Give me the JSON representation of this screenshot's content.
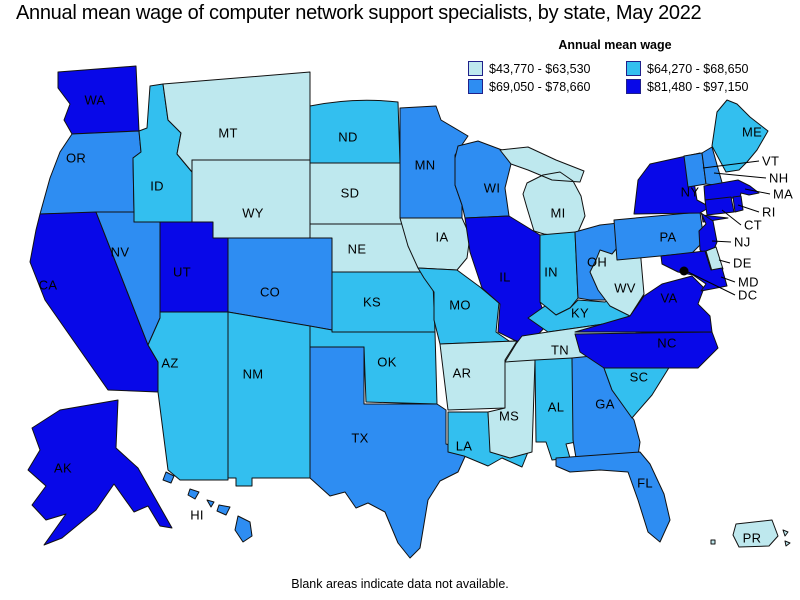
{
  "title": "Annual mean wage of computer network support specialists, by state, May 2022",
  "legend": {
    "title": "Annual mean wage",
    "categories": [
      {
        "label": "$43,770 - $63,530",
        "color": "#bee8ee"
      },
      {
        "label": "$64,270 - $68,650",
        "color": "#33bfef"
      },
      {
        "label": "$69,050 - $78,660",
        "color": "#2e8df2"
      },
      {
        "label": "$81,480 - $97,150",
        "color": "#0808e8"
      }
    ],
    "swatch_border_color": "#20208a"
  },
  "footnote": "Blank areas indicate data not available.",
  "map": {
    "border_color": "#111111",
    "background": "#ffffff",
    "dc_marker": "black-dot"
  },
  "chart_data": {
    "type": "choropleth",
    "region": "United States (states, DC, Puerto Rico)",
    "title": "Annual mean wage of computer network support specialists, by state, May 2022",
    "legend_title": "Annual mean wage",
    "unit": "USD per year (annual mean wage)",
    "bands": [
      "$43,770 - $63,530",
      "$64,270 - $68,650",
      "$69,050 - $78,660",
      "$81,480 - $97,150"
    ],
    "band_colors": [
      "#bee8ee",
      "#33bfef",
      "#2e8df2",
      "#0808e8"
    ],
    "note": "Blank areas indicate data not available.",
    "states": [
      {
        "abbr": "WA",
        "band_index": 3
      },
      {
        "abbr": "OR",
        "band_index": 2
      },
      {
        "abbr": "CA",
        "band_index": 3
      },
      {
        "abbr": "NV",
        "band_index": 2
      },
      {
        "abbr": "ID",
        "band_index": 1
      },
      {
        "abbr": "MT",
        "band_index": 0
      },
      {
        "abbr": "WY",
        "band_index": 0
      },
      {
        "abbr": "UT",
        "band_index": 3
      },
      {
        "abbr": "CO",
        "band_index": 2
      },
      {
        "abbr": "AZ",
        "band_index": 1
      },
      {
        "abbr": "NM",
        "band_index": 1
      },
      {
        "abbr": "ND",
        "band_index": 1
      },
      {
        "abbr": "SD",
        "band_index": 0
      },
      {
        "abbr": "NE",
        "band_index": 0
      },
      {
        "abbr": "KS",
        "band_index": 1
      },
      {
        "abbr": "OK",
        "band_index": 1
      },
      {
        "abbr": "TX",
        "band_index": 2
      },
      {
        "abbr": "MN",
        "band_index": 2
      },
      {
        "abbr": "IA",
        "band_index": 0
      },
      {
        "abbr": "MO",
        "band_index": 1
      },
      {
        "abbr": "AR",
        "band_index": 0
      },
      {
        "abbr": "LA",
        "band_index": 1
      },
      {
        "abbr": "WI",
        "band_index": 2
      },
      {
        "abbr": "IL",
        "band_index": 3
      },
      {
        "abbr": "MI",
        "band_index": 0
      },
      {
        "abbr": "IN",
        "band_index": 1
      },
      {
        "abbr": "OH",
        "band_index": 2
      },
      {
        "abbr": "KY",
        "band_index": 1
      },
      {
        "abbr": "TN",
        "band_index": 0
      },
      {
        "abbr": "MS",
        "band_index": 0
      },
      {
        "abbr": "AL",
        "band_index": 1
      },
      {
        "abbr": "GA",
        "band_index": 2
      },
      {
        "abbr": "SC",
        "band_index": 1
      },
      {
        "abbr": "FL",
        "band_index": 2
      },
      {
        "abbr": "WV",
        "band_index": 0
      },
      {
        "abbr": "VA",
        "band_index": 3
      },
      {
        "abbr": "NC",
        "band_index": 3
      },
      {
        "abbr": "PA",
        "band_index": 2
      },
      {
        "abbr": "NY",
        "band_index": 3
      },
      {
        "abbr": "NJ",
        "band_index": 3
      },
      {
        "abbr": "DE",
        "band_index": 0
      },
      {
        "abbr": "MD",
        "band_index": 3
      },
      {
        "abbr": "VT",
        "band_index": 2
      },
      {
        "abbr": "NH",
        "band_index": 2
      },
      {
        "abbr": "MA",
        "band_index": 3
      },
      {
        "abbr": "CT",
        "band_index": 3
      },
      {
        "abbr": "RI",
        "band_index": 3
      },
      {
        "abbr": "ME",
        "band_index": 1
      },
      {
        "abbr": "DC",
        "band_index": 3
      },
      {
        "abbr": "AK",
        "band_index": 3
      },
      {
        "abbr": "HI",
        "band_index": 2
      },
      {
        "abbr": "PR",
        "band_index": 0
      }
    ]
  }
}
